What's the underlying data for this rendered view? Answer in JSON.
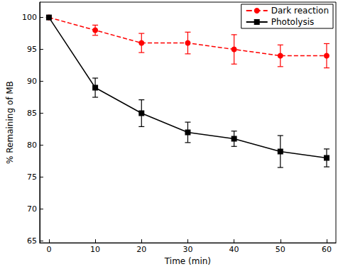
{
  "chart_data": {
    "type": "line",
    "x_label": "Time (min)",
    "y_label": "% Remaining of MB",
    "xlim": [
      -2,
      62
    ],
    "xticks": [
      0,
      10,
      20,
      30,
      40,
      50,
      60
    ],
    "ylim": [
      64.7,
      102.4
    ],
    "yticks": [
      65,
      70,
      75,
      80,
      85,
      90,
      95,
      100
    ],
    "grid": false,
    "legend": "upper right",
    "x": [
      0,
      10,
      20,
      30,
      40,
      50,
      60
    ],
    "series": [
      {
        "name": "Dark reaction",
        "color": "#ff0000",
        "marker": "circle",
        "line_style": "dashed",
        "values": [
          100,
          98,
          96,
          96,
          95,
          94,
          94
        ],
        "errors": [
          0,
          0.8,
          1.5,
          1.7,
          2.3,
          1.7,
          1.9
        ]
      },
      {
        "name": "Photolysis",
        "color": "#000000",
        "marker": "square",
        "line_style": "solid",
        "values": [
          100,
          89,
          85,
          82,
          81,
          79,
          78
        ],
        "errors": [
          0,
          1.5,
          2.1,
          1.6,
          1.2,
          2.5,
          1.4
        ]
      }
    ]
  }
}
